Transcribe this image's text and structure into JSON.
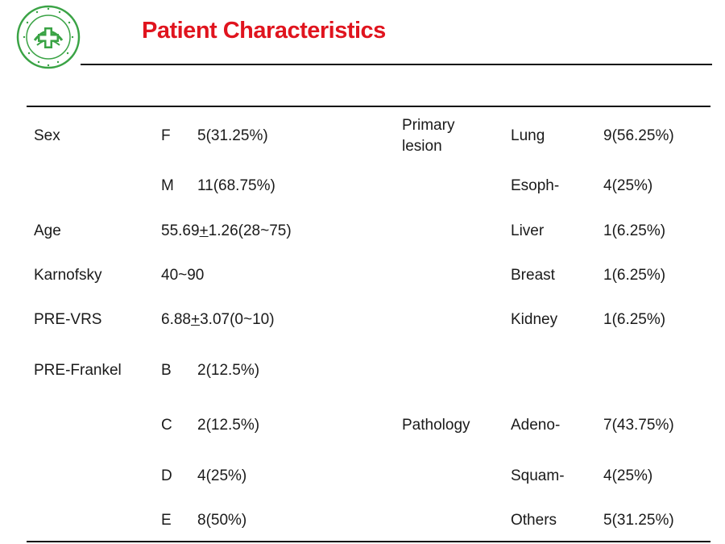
{
  "slide": {
    "title": "Patient Characteristics",
    "logo": {
      "icon": "hospital-cross-emblem-icon",
      "accent_color": "#3aa345"
    }
  },
  "table": {
    "left": {
      "sex": {
        "label": "Sex",
        "rows": [
          {
            "key": "F",
            "value": "5(31.25%)"
          },
          {
            "key": "M",
            "value": "11(68.75%)"
          }
        ]
      },
      "age": {
        "label": "Age",
        "value": {
          "pre": "55.69",
          "pm": "+",
          "post": "1.26(28~75)"
        }
      },
      "karnofsky": {
        "label": "Karnofsky",
        "value": "40~90"
      },
      "pre_vrs": {
        "label": "PRE-VRS",
        "value": {
          "pre": "6.88",
          "pm": "+",
          "post": "3.07(0~10)"
        }
      },
      "pre_frankel": {
        "label": "PRE-Frankel",
        "rows": [
          {
            "key": "B",
            "value": "2(12.5%)"
          },
          {
            "key": "C",
            "value": "2(12.5%)"
          },
          {
            "key": "D",
            "value": "4(25%)"
          },
          {
            "key": "E",
            "value": "8(50%)"
          }
        ]
      }
    },
    "right": {
      "primary_lesion": {
        "label": "Primary lesion",
        "rows": [
          {
            "key": "Lung",
            "value": "9(56.25%)"
          },
          {
            "key": "Esoph-",
            "value": "4(25%)"
          },
          {
            "key": "Liver",
            "value": "1(6.25%)"
          },
          {
            "key": "Breast",
            "value": "1(6.25%)"
          },
          {
            "key": "Kidney",
            "value": "1(6.25%)"
          }
        ]
      },
      "pathology": {
        "label": "Pathology",
        "rows": [
          {
            "key": "Adeno-",
            "value": "7(43.75%)"
          },
          {
            "key": "Squam-",
            "value": "4(25%)"
          },
          {
            "key": "Others",
            "value": "5(31.25%)"
          }
        ]
      }
    }
  }
}
